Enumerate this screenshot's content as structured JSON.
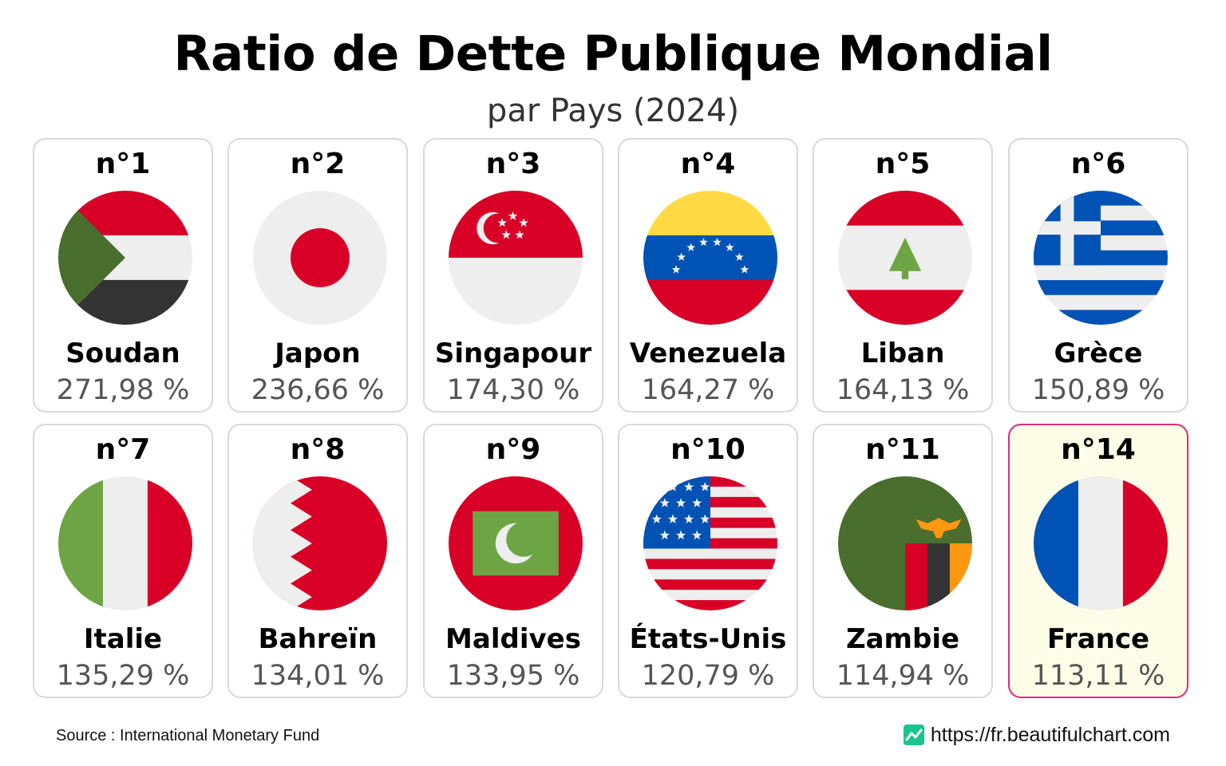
{
  "title": "Ratio de Dette Publique Mondial",
  "subtitle": "par Pays (2024)",
  "source": "Source : International Monetary Fund",
  "website": "https://fr.beautifulchart.com",
  "highlight_color": "#e02a7f",
  "chart_data": {
    "type": "table",
    "columns": [
      "rank",
      "country",
      "value"
    ],
    "unit": "%",
    "rows": [
      {
        "rank": "n°1",
        "country": "Soudan",
        "value": 271.98,
        "label": "271,98 %",
        "flag": "flag-sudan"
      },
      {
        "rank": "n°2",
        "country": "Japon",
        "value": 236.66,
        "label": "236,66 %",
        "flag": "flag-japan"
      },
      {
        "rank": "n°3",
        "country": "Singapour",
        "value": 174.3,
        "label": "174,30 %",
        "flag": "flag-singapore"
      },
      {
        "rank": "n°4",
        "country": "Venezuela",
        "value": 164.27,
        "label": "164,27 %",
        "flag": "flag-venezuela"
      },
      {
        "rank": "n°5",
        "country": "Liban",
        "value": 164.13,
        "label": "164,13 %",
        "flag": "flag-lebanon"
      },
      {
        "rank": "n°6",
        "country": "Grèce",
        "value": 150.89,
        "label": "150,89 %",
        "flag": "flag-greece"
      },
      {
        "rank": "n°7",
        "country": "Italie",
        "value": 135.29,
        "label": "135,29 %",
        "flag": "flag-italy"
      },
      {
        "rank": "n°8",
        "country": "Bahreïn",
        "value": 134.01,
        "label": "134,01 %",
        "flag": "flag-bahrain"
      },
      {
        "rank": "n°9",
        "country": "Maldives",
        "value": 133.95,
        "label": "133,95 %",
        "flag": "flag-maldives"
      },
      {
        "rank": "n°10",
        "country": "États-Unis",
        "value": 120.79,
        "label": "120,79 %",
        "flag": "flag-usa"
      },
      {
        "rank": "n°11",
        "country": "Zambie",
        "value": 114.94,
        "label": "114,94 %",
        "flag": "flag-zambia"
      },
      {
        "rank": "n°14",
        "country": "France",
        "value": 113.11,
        "label": "113,11 %",
        "flag": "flag-france",
        "highlighted": true
      }
    ]
  }
}
